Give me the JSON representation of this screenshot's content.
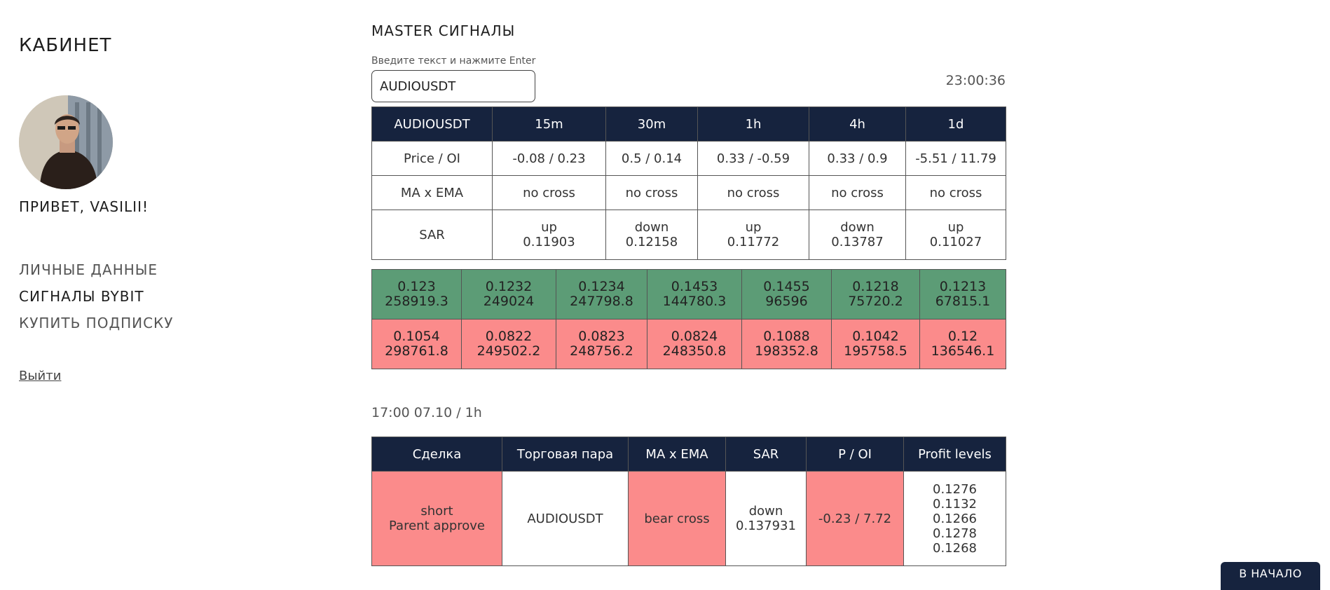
{
  "sidebar": {
    "title": "КАБИНЕТ",
    "greeting": "ПРИВЕТ, VASILII!",
    "menu": [
      "ЛИЧНЫЕ ДАННЫЕ",
      "СИГНАЛЫ BYBIT",
      "КУПИТЬ ПОДПИСКУ"
    ],
    "active_menu": "СИГНАЛЫ BYBIT",
    "logout": "Выйти"
  },
  "main": {
    "title": "MASTER СИГНАЛЫ",
    "input_label": "Введите текст и нажмите Enter",
    "search_value": "AUDIOUSDT",
    "clock": "23:00:36"
  },
  "timeframes": {
    "header": [
      "AUDIOUSDT",
      "15m",
      "30m",
      "1h",
      "4h",
      "1d"
    ],
    "rows": [
      {
        "label": "Price / OI",
        "cells": [
          "-0.08 / 0.23",
          "0.5 / 0.14",
          "0.33 / -0.59",
          "0.33 / 0.9",
          "-5.51 / 11.79"
        ]
      },
      {
        "label": "MA x EMA",
        "cells": [
          "no cross",
          "no cross",
          "no cross",
          "no cross",
          "no cross"
        ]
      },
      {
        "label": "SAR",
        "cells": [
          {
            "dir": "up",
            "value": "0.11903"
          },
          {
            "dir": "down",
            "value": "0.12158"
          },
          {
            "dir": "up",
            "value": "0.11772"
          },
          {
            "dir": "down",
            "value": "0.13787"
          },
          {
            "dir": "up",
            "value": "0.11027"
          }
        ]
      }
    ]
  },
  "orderbook": {
    "bids": [
      {
        "price": "0.123",
        "volume": "258919.3"
      },
      {
        "price": "0.1232",
        "volume": "249024"
      },
      {
        "price": "0.1234",
        "volume": "247798.8"
      },
      {
        "price": "0.1453",
        "volume": "144780.3"
      },
      {
        "price": "0.1455",
        "volume": "96596"
      },
      {
        "price": "0.1218",
        "volume": "75720.2"
      },
      {
        "price": "0.1213",
        "volume": "67815.1"
      }
    ],
    "asks": [
      {
        "price": "0.1054",
        "volume": "298761.8"
      },
      {
        "price": "0.0822",
        "volume": "249502.2"
      },
      {
        "price": "0.0823",
        "volume": "248756.2"
      },
      {
        "price": "0.0824",
        "volume": "248350.8"
      },
      {
        "price": "0.1088",
        "volume": "198352.8"
      },
      {
        "price": "0.1042",
        "volume": "195758.5"
      },
      {
        "price": "0.12",
        "volume": "136546.1"
      }
    ]
  },
  "signal": {
    "timestamp": "17:00 07.10 / 1h",
    "header": [
      "Сделка",
      "Торговая пара",
      "MA x EMA",
      "SAR",
      "P / OI",
      "Profit levels"
    ],
    "deal": [
      "short",
      "Parent approve"
    ],
    "pair": "AUDIOUSDT",
    "ma_ema": "bear cross",
    "sar": [
      "down",
      "0.137931"
    ],
    "p_oi": "-0.23 / 7.72",
    "profit_levels": [
      "0.1276",
      "0.1132",
      "0.1266",
      "0.1278",
      "0.1268"
    ]
  },
  "to_top": "В НАЧАЛО",
  "colors": {
    "navy": "#16233e",
    "green": "#5c9c76",
    "red": "#fb8b8b"
  }
}
